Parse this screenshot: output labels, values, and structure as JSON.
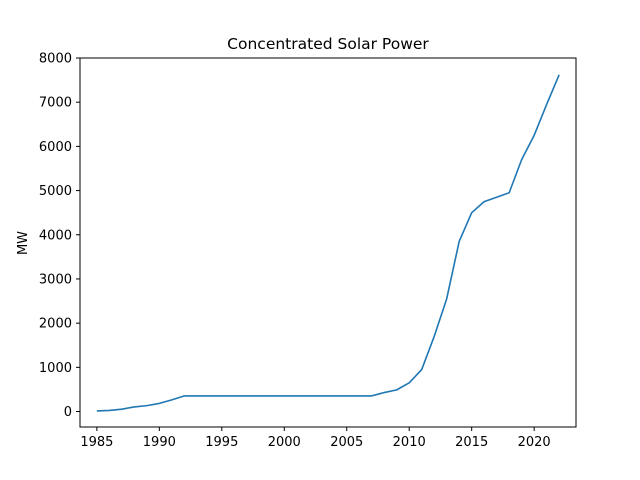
{
  "chart_data": {
    "type": "line",
    "title": "Concentrated Solar Power",
    "xlabel": "",
    "ylabel": "MW",
    "xlim": [
      1983.65,
      2023.35
    ],
    "ylim": [
      -350,
      8000
    ],
    "xticks": [
      1985,
      1990,
      1995,
      2000,
      2005,
      2010,
      2015,
      2020
    ],
    "yticks": [
      0,
      1000,
      2000,
      3000,
      4000,
      5000,
      6000,
      7000,
      8000
    ],
    "grid": false,
    "series": [
      {
        "color": "#1f77b4",
        "x": [
          1985,
          1986,
          1987,
          1988,
          1989,
          1990,
          1991,
          1992,
          1993,
          1994,
          1995,
          1996,
          1997,
          1998,
          1999,
          2000,
          2001,
          2002,
          2003,
          2004,
          2005,
          2006,
          2007,
          2008,
          2009,
          2010,
          2011,
          2012,
          2013,
          2014,
          2015,
          2016,
          2017,
          2018,
          2019,
          2020,
          2021,
          2022
        ],
        "y": [
          14,
          24,
          54,
          104,
          134,
          184,
          264,
          354,
          354,
          354,
          354,
          354,
          354,
          354,
          354,
          354,
          354,
          354,
          354,
          354,
          354,
          354,
          354,
          430,
          490,
          650,
          950,
          1700,
          2550,
          3850,
          4500,
          4750,
          4850,
          4950,
          5700,
          6250,
          6950,
          7620
        ]
      }
    ]
  }
}
